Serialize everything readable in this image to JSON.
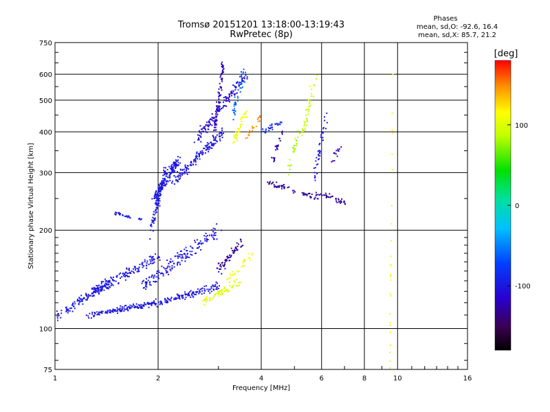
{
  "chart_data": {
    "type": "scatter",
    "title": "Tromsø 20151201 13:18:00-13:19:43",
    "subtitle": "RwPretec (8p)",
    "xlabel": "Frequency [MHz]",
    "ylabel": "Stationary phase Virtual Height [km]",
    "x_scale": "log",
    "y_scale": "log",
    "xlim": [
      1,
      16
    ],
    "ylim": [
      75,
      750
    ],
    "grid": true,
    "x_ticks": [
      {
        "v": 1,
        "label": "1"
      },
      {
        "v": 2,
        "label": "2"
      },
      {
        "v": 4,
        "label": "4"
      },
      {
        "v": 6,
        "label": "6"
      },
      {
        "v": 8,
        "label": "8"
      },
      {
        "v": 10,
        "label": "10"
      },
      {
        "v": 16,
        "label": "16"
      }
    ],
    "y_ticks": [
      {
        "v": 75,
        "label": "75"
      },
      {
        "v": 100,
        "label": "100"
      },
      {
        "v": 200,
        "label": "200"
      },
      {
        "v": 300,
        "label": "300"
      },
      {
        "v": 400,
        "label": "400"
      },
      {
        "v": 500,
        "label": "500"
      },
      {
        "v": 600,
        "label": "600"
      },
      {
        "v": 750,
        "label": "750"
      }
    ],
    "stats": {
      "heading": "Phases",
      "line_o": "mean, sd,O: -92.6, 16.4",
      "line_x": "mean, sd,X:  85.7, 21.2"
    },
    "colorbar": {
      "label": "[deg]",
      "range": [
        -180,
        180
      ],
      "ticks": [
        {
          "v": 100,
          "label": "100"
        },
        {
          "v": 0,
          "label": "0"
        },
        {
          "v": -100,
          "label": "-100"
        }
      ]
    },
    "series": [
      {
        "segments": [
          {
            "f0": 1.0,
            "f1": 1.45,
            "h0": 108,
            "h1": 140,
            "phase": -100,
            "n": 120,
            "sx": 0.03,
            "sy": 0.045
          },
          {
            "f0": 1.25,
            "f1": 2.0,
            "h0": 110,
            "h1": 120,
            "phase": -100,
            "n": 150,
            "sx": 0.03,
            "sy": 0.03
          },
          {
            "f0": 1.3,
            "f1": 2.0,
            "h0": 130,
            "h1": 165,
            "phase": -100,
            "n": 150,
            "sx": 0.03,
            "sy": 0.05
          },
          {
            "f0": 2.0,
            "f1": 3.0,
            "h0": 120,
            "h1": 135,
            "phase": -100,
            "n": 120,
            "sx": 0.03,
            "sy": 0.04
          },
          {
            "f0": 1.8,
            "f1": 3.0,
            "h0": 135,
            "h1": 200,
            "phase": -100,
            "n": 170,
            "sx": 0.035,
            "sy": 0.07
          },
          {
            "f0": 1.9,
            "f1": 2.1,
            "h0": 200,
            "h1": 300,
            "phase": -100,
            "n": 110,
            "sx": 0.015,
            "sy": 0.08
          },
          {
            "f0": 1.95,
            "f1": 2.3,
            "h0": 250,
            "h1": 330,
            "phase": -100,
            "n": 130,
            "sx": 0.02,
            "sy": 0.05
          },
          {
            "f0": 2.2,
            "f1": 3.1,
            "h0": 280,
            "h1": 400,
            "phase": -100,
            "n": 150,
            "sx": 0.03,
            "sy": 0.05
          },
          {
            "f0": 2.6,
            "f1": 3.6,
            "h0": 380,
            "h1": 600,
            "phase": -110,
            "n": 140,
            "sx": 0.03,
            "sy": 0.06
          },
          {
            "f0": 1.5,
            "f1": 1.8,
            "h0": 225,
            "h1": 215,
            "phase": -100,
            "n": 30,
            "sx": 0.015,
            "sy": 0.015
          },
          {
            "f0": 2.9,
            "f1": 3.1,
            "h0": 380,
            "h1": 650,
            "phase": -120,
            "n": 80,
            "sx": 0.01,
            "sy": 0.1
          },
          {
            "f0": 3.0,
            "f1": 3.5,
            "h0": 150,
            "h1": 185,
            "phase": -130,
            "n": 60,
            "sx": 0.03,
            "sy": 0.05
          },
          {
            "f0": 2.7,
            "f1": 3.5,
            "h0": 120,
            "h1": 140,
            "phase": 100,
            "n": 70,
            "sx": 0.03,
            "sy": 0.035
          },
          {
            "f0": 3.2,
            "f1": 3.8,
            "h0": 140,
            "h1": 170,
            "phase": 110,
            "n": 30,
            "sx": 0.02,
            "sy": 0.04
          },
          {
            "f0": 3.3,
            "f1": 3.6,
            "h0": 360,
            "h1": 460,
            "phase": 110,
            "n": 40,
            "sx": 0.02,
            "sy": 0.05
          },
          {
            "f0": 3.6,
            "f1": 4.0,
            "h0": 380,
            "h1": 450,
            "phase": 150,
            "n": 20,
            "sx": 0.015,
            "sy": 0.04
          },
          {
            "f0": 3.3,
            "f1": 3.6,
            "h0": 450,
            "h1": 620,
            "phase": -60,
            "n": 40,
            "sx": 0.02,
            "sy": 0.06
          },
          {
            "f0": 4.0,
            "f1": 4.6,
            "h0": 400,
            "h1": 430,
            "phase": -90,
            "n": 30,
            "sx": 0.02,
            "sy": 0.03
          },
          {
            "f0": 4.2,
            "f1": 5.8,
            "h0": 280,
            "h1": 250,
            "phase": -130,
            "n": 60,
            "sx": 0.03,
            "sy": 0.03
          },
          {
            "f0": 5.3,
            "f1": 5.8,
            "h0": 400,
            "h1": 600,
            "phase": 90,
            "n": 40,
            "sx": 0.02,
            "sy": 0.07
          },
          {
            "f0": 5.7,
            "f1": 6.2,
            "h0": 290,
            "h1": 450,
            "phase": -100,
            "n": 40,
            "sx": 0.02,
            "sy": 0.06
          },
          {
            "f0": 5.8,
            "f1": 7.1,
            "h0": 260,
            "h1": 240,
            "phase": -130,
            "n": 40,
            "sx": 0.03,
            "sy": 0.03
          },
          {
            "f0": 4.8,
            "f1": 5.2,
            "h0": 300,
            "h1": 420,
            "phase": 80,
            "n": 25,
            "sx": 0.02,
            "sy": 0.05
          },
          {
            "f0": 4.3,
            "f1": 4.6,
            "h0": 320,
            "h1": 400,
            "phase": -120,
            "n": 20,
            "sx": 0.02,
            "sy": 0.04
          },
          {
            "f0": 6.4,
            "f1": 6.8,
            "h0": 320,
            "h1": 360,
            "phase": -120,
            "n": 15,
            "sx": 0.02,
            "sy": 0.03
          },
          {
            "f0": 9.5,
            "f1": 9.7,
            "h0": 80,
            "h1": 640,
            "phase": 110,
            "n": 25,
            "sx": 0.005,
            "sy": 0.2
          }
        ]
      }
    ]
  }
}
